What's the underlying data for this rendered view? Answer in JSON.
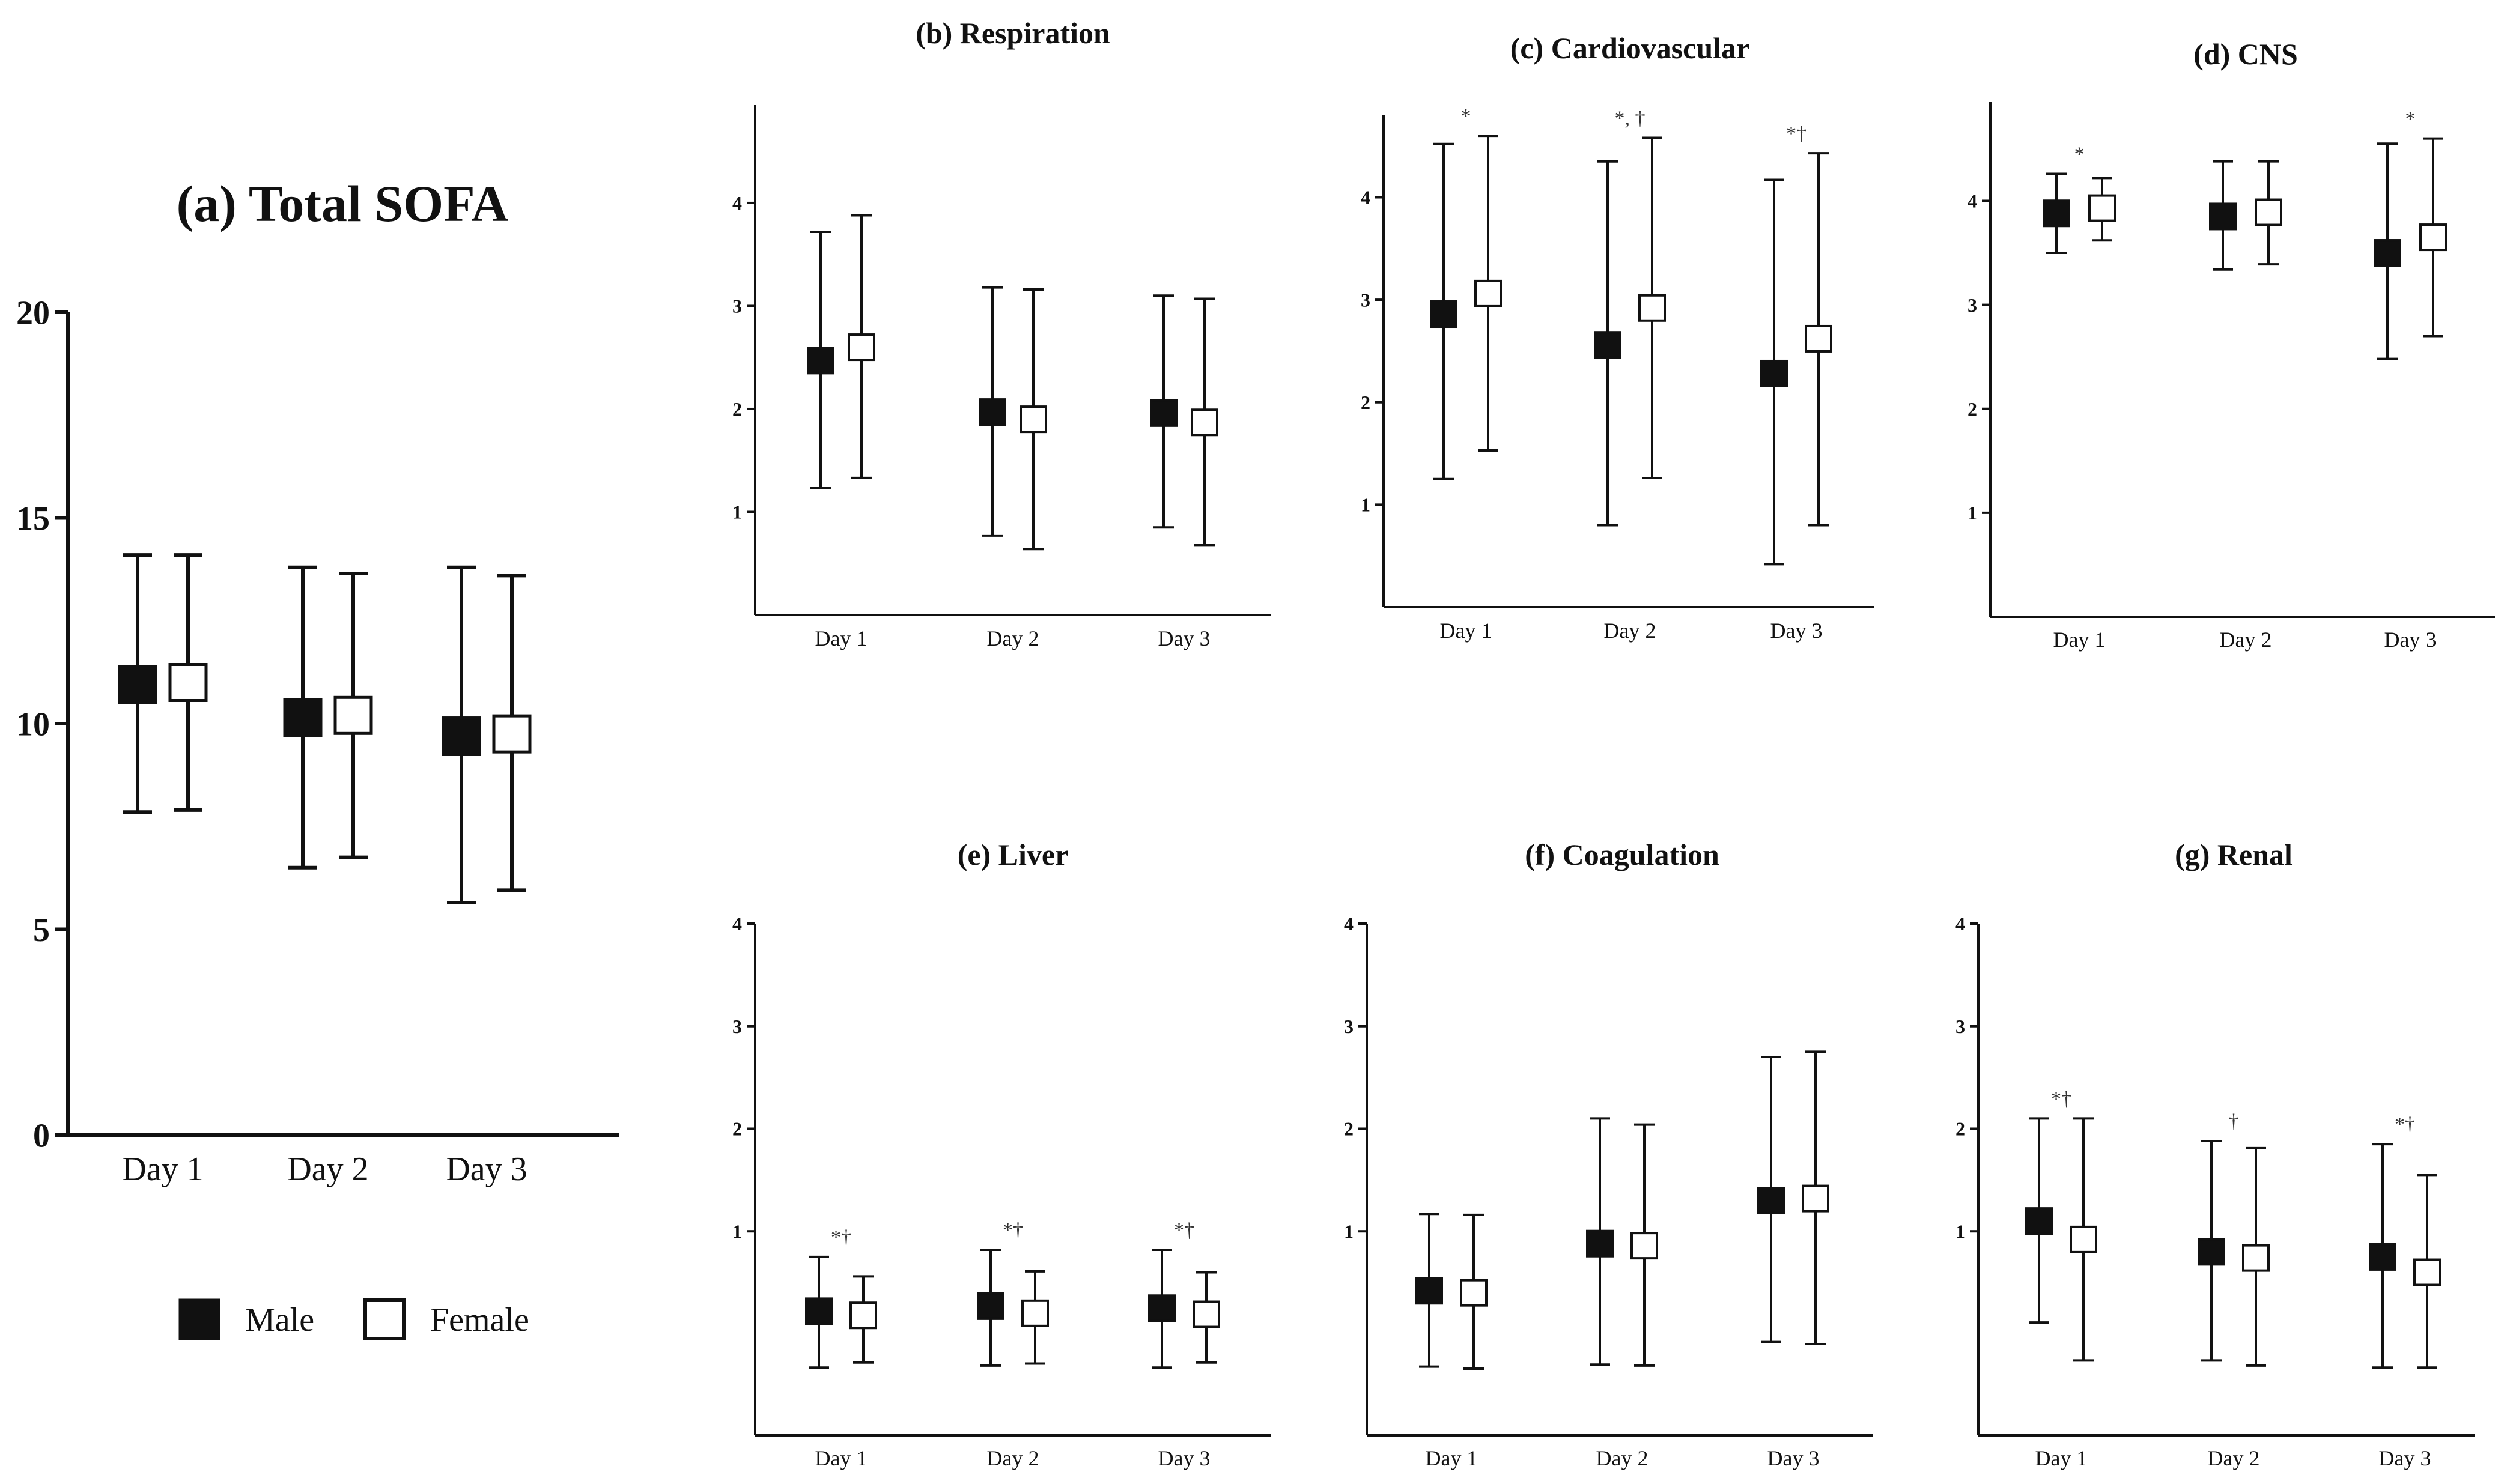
{
  "colors": {
    "male": "#111111",
    "female": "#ffffff",
    "axis": "#111111"
  },
  "legend": {
    "male_label": "Male",
    "female_label": "Female"
  },
  "chart_data": [
    {
      "id": "a",
      "type": "errorbar",
      "title": "(a) Total SOFA",
      "categories": [
        "Day 1",
        "Day 2",
        "Day 3"
      ],
      "ylim": [
        0,
        20
      ],
      "yticks": [
        0,
        5,
        10,
        15,
        20
      ],
      "series": [
        {
          "name": "Male",
          "mean": [
            10.95,
            10.15,
            9.7
          ],
          "low": [
            7.85,
            6.5,
            5.65
          ],
          "high": [
            14.1,
            13.8,
            13.8
          ]
        },
        {
          "name": "Female",
          "mean": [
            11.0,
            10.2,
            9.75
          ],
          "low": [
            7.9,
            6.75,
            5.95
          ],
          "high": [
            14.1,
            13.65,
            13.6
          ]
        }
      ],
      "annotations": []
    },
    {
      "id": "b",
      "type": "errorbar",
      "title": "(b) Respiration",
      "categories": [
        "Day 1",
        "Day 2",
        "Day 3"
      ],
      "ylim": [
        0,
        4.95
      ],
      "yticks": [
        1,
        2,
        3,
        4
      ],
      "series": [
        {
          "name": "Male",
          "mean": [
            2.47,
            1.97,
            1.96
          ],
          "low": [
            1.23,
            0.77,
            0.85
          ],
          "high": [
            3.72,
            3.18,
            3.1
          ]
        },
        {
          "name": "Female",
          "mean": [
            2.6,
            1.9,
            1.87
          ],
          "low": [
            1.33,
            0.64,
            0.68
          ],
          "high": [
            3.88,
            3.16,
            3.07
          ]
        }
      ],
      "annotations": []
    },
    {
      "id": "c",
      "type": "errorbar",
      "title": "(c) Cardiovascular",
      "categories": [
        "Day 1",
        "Day 2",
        "Day 3"
      ],
      "ylim": [
        0,
        4.8
      ],
      "yticks": [
        1,
        2,
        3,
        4
      ],
      "series": [
        {
          "name": "Male",
          "mean": [
            2.86,
            2.56,
            2.28
          ],
          "low": [
            1.25,
            0.8,
            0.42
          ],
          "high": [
            4.52,
            4.35,
            4.17
          ]
        },
        {
          "name": "Female",
          "mean": [
            3.06,
            2.92,
            2.62
          ],
          "low": [
            1.53,
            1.26,
            0.8
          ],
          "high": [
            4.6,
            4.58,
            4.43
          ]
        }
      ],
      "annotations": [
        "*",
        "*, †",
        "*†"
      ]
    },
    {
      "id": "d",
      "type": "errorbar",
      "title": "(d) CNS",
      "categories": [
        "Day 1",
        "Day 2",
        "Day 3"
      ],
      "ylim": [
        0,
        4.95
      ],
      "yticks": [
        1,
        2,
        3,
        4
      ],
      "series": [
        {
          "name": "Male",
          "mean": [
            3.88,
            3.85,
            3.5
          ],
          "low": [
            3.5,
            3.34,
            2.48
          ],
          "high": [
            4.26,
            4.38,
            4.55
          ]
        },
        {
          "name": "Female",
          "mean": [
            3.93,
            3.89,
            3.65
          ],
          "low": [
            3.62,
            3.39,
            2.7
          ],
          "high": [
            4.22,
            4.38,
            4.6
          ]
        }
      ],
      "annotations": [
        "*",
        "",
        "*"
      ]
    },
    {
      "id": "e",
      "type": "errorbar",
      "title": "(e) Liver",
      "categories": [
        "Day 1",
        "Day 2",
        "Day 3"
      ],
      "ylim": [
        -0.99,
        4
      ],
      "yticks": [
        1,
        2,
        3,
        4
      ],
      "series": [
        {
          "name": "Male",
          "mean": [
            0.22,
            0.27,
            0.25
          ],
          "low": [
            -0.33,
            -0.31,
            -0.33
          ],
          "high": [
            0.75,
            0.82,
            0.82
          ]
        },
        {
          "name": "Female",
          "mean": [
            0.18,
            0.2,
            0.19
          ],
          "low": [
            -0.28,
            -0.29,
            -0.28
          ],
          "high": [
            0.56,
            0.61,
            0.6
          ]
        }
      ],
      "annotations": [
        "*†",
        "*†",
        "*†"
      ]
    },
    {
      "id": "f",
      "type": "errorbar",
      "title": "(f) Coagulation",
      "categories": [
        "Day 1",
        "Day 2",
        "Day 3"
      ],
      "ylim": [
        -0.99,
        4
      ],
      "yticks": [
        1,
        2,
        3,
        4
      ],
      "series": [
        {
          "name": "Male",
          "mean": [
            0.42,
            0.88,
            1.3
          ],
          "low": [
            -0.32,
            -0.3,
            -0.08
          ],
          "high": [
            1.17,
            2.1,
            2.7
          ]
        },
        {
          "name": "Female",
          "mean": [
            0.4,
            0.86,
            1.32
          ],
          "low": [
            -0.34,
            -0.31,
            -0.1
          ],
          "high": [
            1.16,
            2.04,
            2.75
          ]
        }
      ],
      "annotations": []
    },
    {
      "id": "g",
      "type": "errorbar",
      "title": "(g) Renal",
      "categories": [
        "Day 1",
        "Day 2",
        "Day 3"
      ],
      "ylim": [
        -0.99,
        4
      ],
      "yticks": [
        1,
        2,
        3,
        4
      ],
      "series": [
        {
          "name": "Male",
          "mean": [
            1.1,
            0.8,
            0.75
          ],
          "low": [
            0.11,
            -0.26,
            -0.33
          ],
          "high": [
            2.1,
            1.88,
            1.85
          ]
        },
        {
          "name": "Female",
          "mean": [
            0.92,
            0.74,
            0.6
          ],
          "low": [
            -0.26,
            -0.31,
            -0.33
          ],
          "high": [
            2.1,
            1.81,
            1.55
          ]
        }
      ],
      "annotations": [
        "*†",
        "†",
        "*†"
      ]
    }
  ]
}
